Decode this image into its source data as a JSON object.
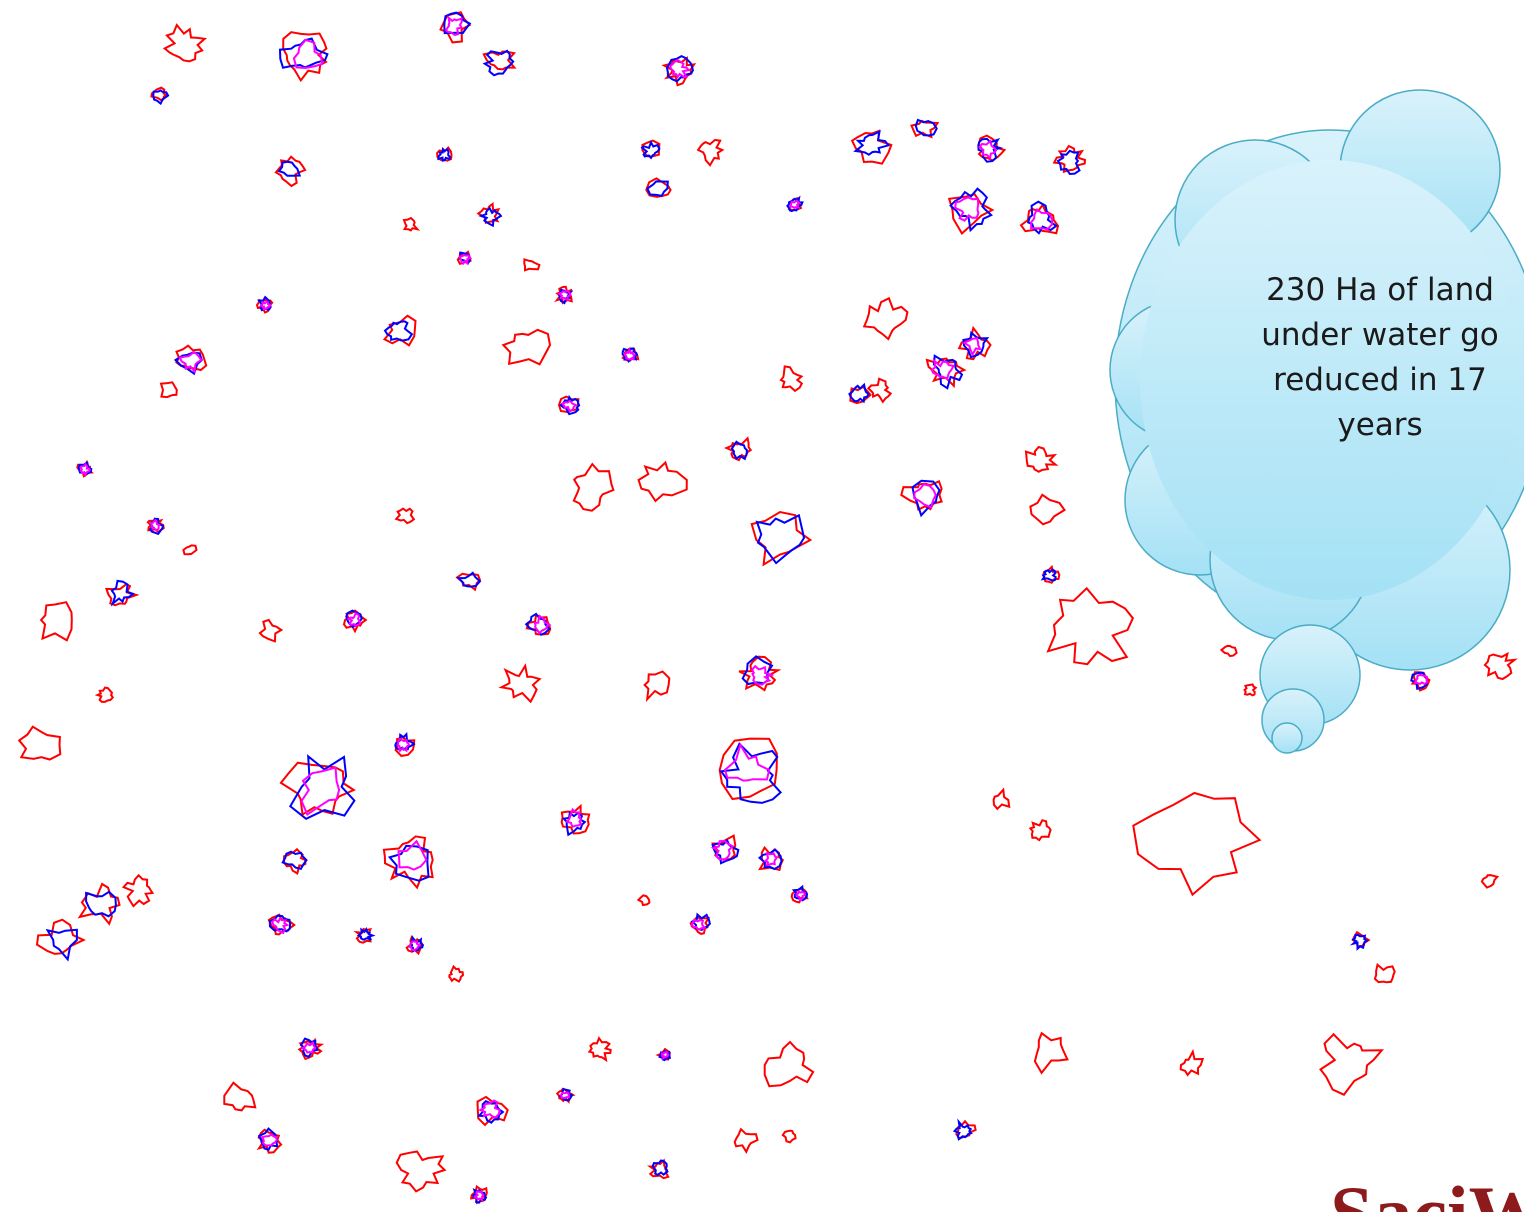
{
  "callout": {
    "lines": [
      "230 Ha of land",
      "under water go",
      "reduced in 17",
      "years"
    ]
  },
  "logo": {
    "text": "SaciW"
  }
}
